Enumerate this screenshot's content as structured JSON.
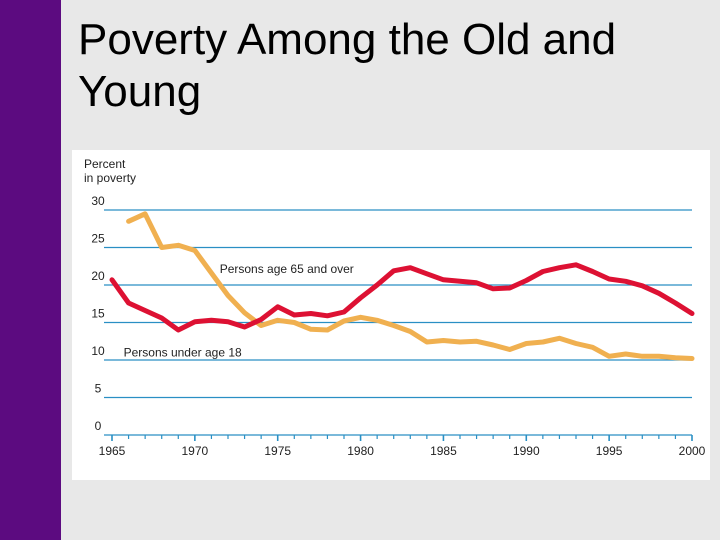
{
  "slide": {
    "title": "Poverty Among the Old and Young",
    "sidebar_color": "#5c0b80",
    "background_color": "#e8e8e8"
  },
  "chart_data": {
    "type": "line",
    "ylabel_line1": "Percent",
    "ylabel_line2": "in poverty",
    "ylim": [
      0,
      30
    ],
    "xlim": [
      1965,
      2000
    ],
    "grid": true,
    "y_ticks": [
      0,
      5,
      10,
      15,
      20,
      25,
      30
    ],
    "x_ticks": [
      1965,
      1970,
      1975,
      1980,
      1985,
      1990,
      1995,
      2000
    ],
    "series": [
      {
        "name": "Persons age 65 and over",
        "color": "#f0b050",
        "x": [
          1966,
          1967,
          1968,
          1969,
          1970,
          1971,
          1972,
          1973,
          1974,
          1975,
          1976,
          1977,
          1978,
          1979,
          1980,
          1981,
          1982,
          1983,
          1984,
          1985,
          1986,
          1987,
          1988,
          1989,
          1990,
          1991,
          1992,
          1993,
          1994,
          1995,
          1996,
          1997,
          1998,
          1999,
          2000
        ],
        "values": [
          28.5,
          29.5,
          25.0,
          25.3,
          24.6,
          21.6,
          18.6,
          16.3,
          14.6,
          15.3,
          15.0,
          14.1,
          14.0,
          15.2,
          15.7,
          15.3,
          14.6,
          13.8,
          12.4,
          12.6,
          12.4,
          12.5,
          12.0,
          11.4,
          12.2,
          12.4,
          12.9,
          12.2,
          11.7,
          10.5,
          10.8,
          10.5,
          10.5,
          10.3,
          10.2
        ]
      },
      {
        "name": "Persons under age 18",
        "color": "#dd1133",
        "x": [
          1965,
          1966,
          1967,
          1968,
          1969,
          1970,
          1971,
          1972,
          1973,
          1974,
          1975,
          1976,
          1977,
          1978,
          1979,
          1980,
          1981,
          1982,
          1983,
          1984,
          1985,
          1986,
          1987,
          1988,
          1989,
          1990,
          1991,
          1992,
          1993,
          1994,
          1995,
          1996,
          1997,
          1998,
          1999,
          2000
        ],
        "values": [
          20.7,
          17.6,
          16.6,
          15.6,
          14.0,
          15.1,
          15.3,
          15.1,
          14.4,
          15.4,
          17.1,
          16.0,
          16.2,
          15.9,
          16.4,
          18.3,
          20.0,
          21.9,
          22.3,
          21.5,
          20.7,
          20.5,
          20.3,
          19.5,
          19.6,
          20.6,
          21.8,
          22.3,
          22.7,
          21.8,
          20.8,
          20.5,
          19.9,
          18.9,
          17.6,
          16.2
        ]
      }
    ],
    "annotations": [
      {
        "text": "Persons age 65 and over",
        "series": 0,
        "anchor_x": 1971.5,
        "anchor_y": 21.6
      },
      {
        "text": "Persons under age 18",
        "series": 1,
        "anchor_x": 1965.7,
        "anchor_y": 10.5
      }
    ]
  }
}
